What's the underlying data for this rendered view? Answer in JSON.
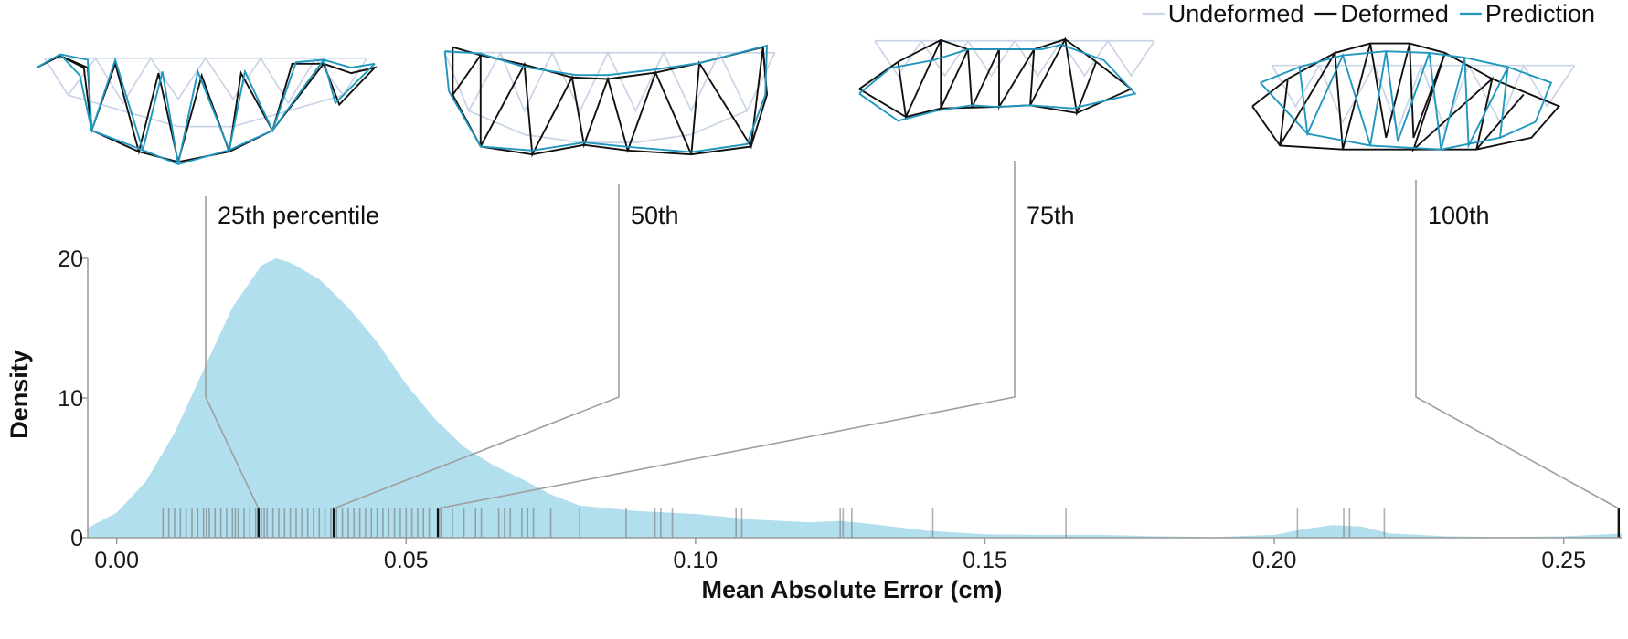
{
  "chart_data": {
    "type": "area",
    "title": "",
    "xlabel": "Mean Absolute Error (cm)",
    "ylabel": "Density",
    "xlim": [
      -0.005,
      0.26
    ],
    "ylim": [
      0,
      20
    ],
    "x_ticks": [
      "0.00",
      "0.05",
      "0.10",
      "0.15",
      "0.20",
      "0.25"
    ],
    "x_tick_values": [
      0.0,
      0.05,
      0.1,
      0.15,
      0.2,
      0.25
    ],
    "y_ticks": [
      "0",
      "10",
      "20"
    ],
    "y_tick_values": [
      0,
      10,
      20
    ],
    "grid": false,
    "legend_position": "top-right",
    "legend": [
      {
        "name": "Undeformed",
        "color": "#c9d5e6"
      },
      {
        "name": "Deformed",
        "color": "#111111"
      },
      {
        "name": "Prediction",
        "color": "#1f97bf"
      }
    ],
    "density_color": "#b2dfed",
    "series": [
      {
        "name": "",
        "x": [
          -0.005,
          0.0,
          0.005,
          0.01,
          0.015,
          0.02,
          0.025,
          0.0275,
          0.03,
          0.035,
          0.04,
          0.045,
          0.05,
          0.055,
          0.06,
          0.065,
          0.07,
          0.075,
          0.08,
          0.09,
          0.1,
          0.11,
          0.12,
          0.125,
          0.13,
          0.14,
          0.15,
          0.16,
          0.17,
          0.18,
          0.19,
          0.2,
          0.205,
          0.21,
          0.215,
          0.22,
          0.23,
          0.24,
          0.25,
          0.26
        ],
        "values": [
          0.7,
          1.8,
          4.0,
          7.5,
          12.0,
          16.5,
          19.5,
          20.0,
          19.7,
          18.5,
          16.5,
          14.0,
          11.0,
          8.5,
          6.5,
          5.2,
          4.2,
          3.1,
          2.3,
          1.9,
          1.7,
          1.3,
          1.1,
          1.2,
          1.0,
          0.5,
          0.25,
          0.2,
          0.2,
          0.1,
          0.05,
          0.2,
          0.6,
          0.9,
          0.8,
          0.3,
          0.1,
          0.05,
          0.1,
          0.3
        ]
      }
    ],
    "rug": [
      0.008,
      0.009,
      0.01,
      0.011,
      0.012,
      0.013,
      0.014,
      0.015,
      0.0155,
      0.016,
      0.017,
      0.018,
      0.019,
      0.02,
      0.0205,
      0.021,
      0.022,
      0.023,
      0.024,
      0.0245,
      0.025,
      0.0255,
      0.026,
      0.027,
      0.028,
      0.029,
      0.03,
      0.031,
      0.032,
      0.033,
      0.034,
      0.035,
      0.036,
      0.037,
      0.0375,
      0.038,
      0.039,
      0.04,
      0.041,
      0.042,
      0.043,
      0.044,
      0.045,
      0.046,
      0.047,
      0.048,
      0.049,
      0.05,
      0.051,
      0.052,
      0.053,
      0.054,
      0.0555,
      0.056,
      0.058,
      0.06,
      0.062,
      0.063,
      0.066,
      0.067,
      0.068,
      0.07,
      0.071,
      0.072,
      0.075,
      0.08,
      0.088,
      0.093,
      0.094,
      0.096,
      0.107,
      0.108,
      0.125,
      0.1255,
      0.127,
      0.141,
      0.164,
      0.204,
      0.212,
      0.213,
      0.219
    ],
    "highlights": [
      {
        "label": "25th percentile",
        "x": 0.0245
      },
      {
        "label": "50th",
        "x": 0.0375
      },
      {
        "label": "75th",
        "x": 0.0555
      },
      {
        "label": "100th",
        "x": 0.2595
      }
    ]
  }
}
